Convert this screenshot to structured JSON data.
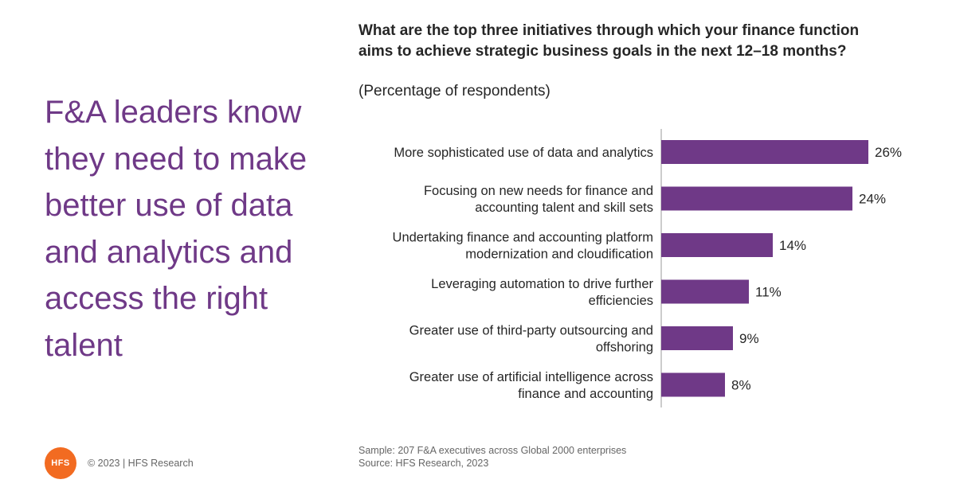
{
  "headline": "F&A leaders know they need to make better use of data and analytics and access the right talent",
  "chart_data": {
    "type": "bar",
    "orientation": "horizontal",
    "title": "What are the top three initiatives through which your finance function aims to achieve strategic business goals in the next 12–18 months?",
    "subtitle": "(Percentage of respondents)",
    "categories": [
      [
        "More sophisticated use of data and analytics"
      ],
      [
        "Focusing on new needs for finance and",
        "accounting talent and skill sets"
      ],
      [
        "Undertaking finance and accounting platform",
        "modernization and cloudification"
      ],
      [
        "Leveraging automation to drive further",
        "efficiencies"
      ],
      [
        "Greater use of third-party outsourcing and",
        "offshoring"
      ],
      [
        "Greater use of artificial intelligence across",
        "finance and accounting"
      ]
    ],
    "values": [
      26,
      24,
      14,
      11,
      9,
      8
    ],
    "value_labels": [
      "26%",
      "24%",
      "14%",
      "11%",
      "9%",
      "8%"
    ],
    "bar_color": "#6f3987",
    "grid": false
  },
  "footnote": {
    "sample": "Sample: 207 F&A executives across Global 2000 enterprises",
    "source": "Source: HFS Research,  2023"
  },
  "brand": {
    "logo_text": "HFS",
    "logo_color": "#f26b21",
    "copyright": "© 2023 | HFS Research"
  }
}
